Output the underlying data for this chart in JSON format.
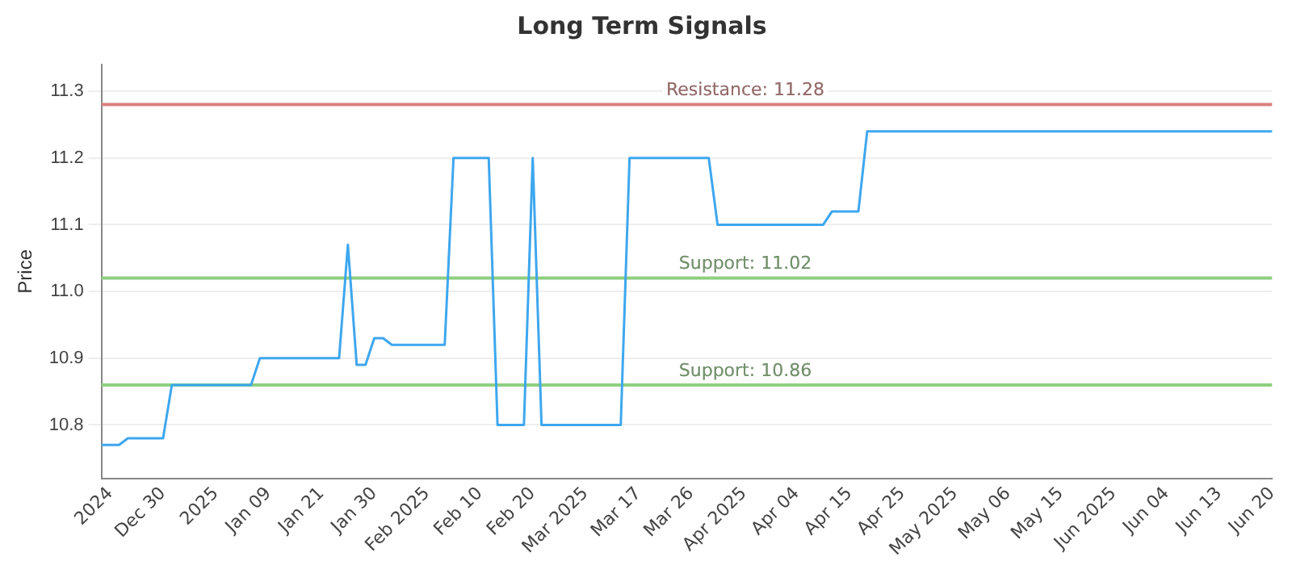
{
  "chart_data": {
    "type": "line",
    "title": "Long Term Signals",
    "ylabel": "Price",
    "categories": [
      null,
      "2024",
      null,
      null,
      null,
      null,
      null,
      "Dec 30",
      null,
      null,
      null,
      null,
      null,
      "2025",
      null,
      null,
      null,
      null,
      null,
      "Jan 09",
      null,
      null,
      null,
      null,
      null,
      "Jan 21",
      null,
      null,
      null,
      null,
      null,
      "Jan 30",
      null,
      null,
      null,
      null,
      null,
      "Feb 2025",
      null,
      null,
      null,
      null,
      null,
      "Feb 10",
      null,
      null,
      null,
      null,
      null,
      "Feb 20",
      null,
      null,
      null,
      null,
      null,
      "Mar 2025",
      null,
      null,
      null,
      null,
      null,
      "Mar 17",
      null,
      null,
      null,
      null,
      null,
      "Mar 26",
      null,
      null,
      null,
      null,
      null,
      "Apr 2025",
      null,
      null,
      null,
      null,
      null,
      "Apr 04",
      null,
      null,
      null,
      null,
      null,
      "Apr 15",
      null,
      null,
      null,
      null,
      null,
      "Apr 25",
      null,
      null,
      null,
      null,
      null,
      "May 2025",
      null,
      null,
      null,
      null,
      null,
      "May 06",
      null,
      null,
      null,
      null,
      null,
      "May 15",
      null,
      null,
      null,
      null,
      null,
      "Jun 2025",
      null,
      null,
      null,
      null,
      null,
      "Jun 04",
      null,
      null,
      null,
      null,
      null,
      "Jun 13",
      null,
      null,
      null,
      null,
      null,
      "Jun 20"
    ],
    "series": [
      {
        "color": "#3ea7ee",
        "values": [
          10.77,
          10.77,
          10.77,
          10.78,
          10.78,
          10.78,
          10.78,
          10.78,
          10.86,
          10.86,
          10.86,
          10.86,
          10.86,
          10.86,
          10.86,
          10.86,
          10.86,
          10.86,
          10.9,
          10.9,
          10.9,
          10.9,
          10.9,
          10.9,
          10.9,
          10.9,
          10.9,
          10.9,
          11.07,
          10.89,
          10.89,
          10.93,
          10.93,
          10.92,
          10.92,
          10.92,
          10.92,
          10.92,
          10.92,
          10.92,
          11.2,
          11.2,
          11.2,
          11.2,
          11.2,
          10.8,
          10.8,
          10.8,
          10.8,
          11.2,
          10.8,
          10.8,
          10.8,
          10.8,
          10.8,
          10.8,
          10.8,
          10.8,
          10.8,
          10.8,
          11.2,
          11.2,
          11.2,
          11.2,
          11.2,
          11.2,
          11.2,
          11.2,
          11.2,
          11.2,
          11.1,
          11.1,
          11.1,
          11.1,
          11.1,
          11.1,
          11.1,
          11.1,
          11.1,
          11.1,
          11.1,
          11.1,
          11.1,
          11.12,
          11.12,
          11.12,
          11.12,
          11.24,
          11.24,
          11.24,
          11.24,
          11.24,
          11.24,
          11.24,
          11.24,
          11.24,
          11.24,
          11.24,
          11.24,
          11.24,
          11.24,
          11.24,
          11.24,
          11.24,
          11.24,
          11.24,
          11.24,
          11.24,
          11.24,
          11.24,
          11.24,
          11.24,
          11.24,
          11.24,
          11.24,
          11.24,
          11.24,
          11.24,
          11.24,
          11.24,
          11.24,
          11.24,
          11.24,
          11.24,
          11.24,
          11.24,
          11.24,
          11.24,
          11.24,
          11.24,
          11.24,
          11.24,
          11.24,
          11.24
        ]
      }
    ],
    "ylim": [
      10.72,
      11.34
    ],
    "yticks": [
      10.8,
      10.9,
      {
        "value": 11,
        "label": "11.0"
      },
      11.1,
      11.2,
      11.3
    ],
    "ref_lines": [
      {
        "axis": "y",
        "value": 11.28,
        "label": "Resistance: 11.28",
        "color": "#d98080"
      },
      {
        "axis": "y",
        "value": 11.02,
        "label": "Support: 11.02",
        "color": "#8fcf80"
      },
      {
        "axis": "y",
        "value": 10.86,
        "label": "Support: 10.86",
        "color": "#8fcf80"
      }
    ],
    "grid": "y",
    "legend": false,
    "marker": "none",
    "line_style": "solid"
  }
}
